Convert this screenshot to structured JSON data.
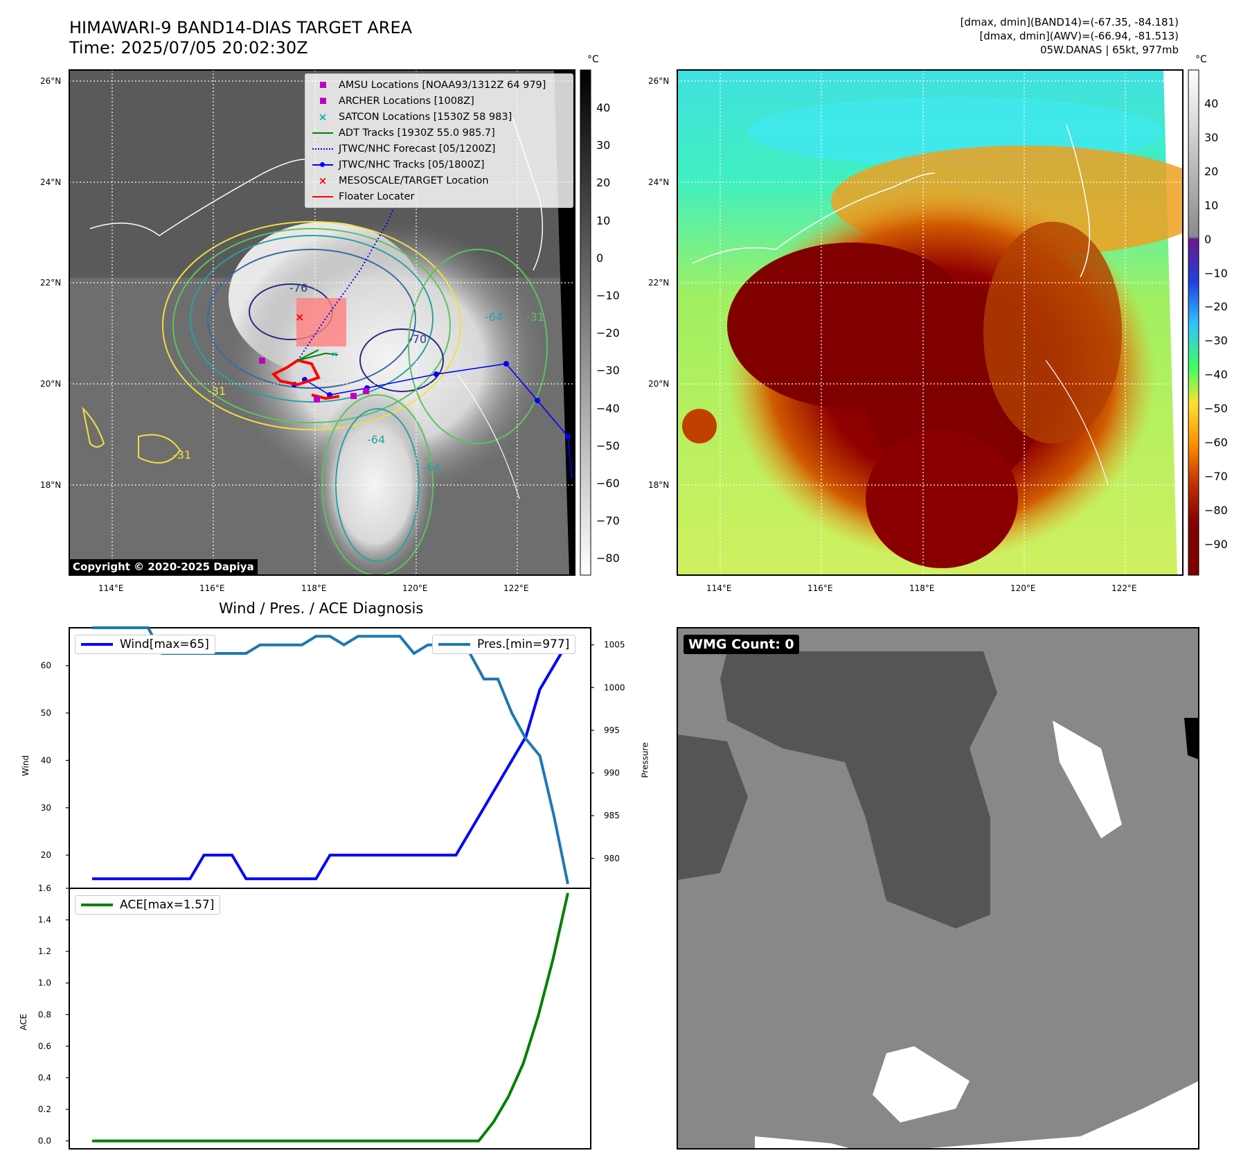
{
  "header": {
    "title_line1": "HIMAWARI-9 BAND14-DIAS TARGET AREA",
    "title_line2": "Time: 2025/07/05 20:02:30Z",
    "stats_line1": "[dmax, dmin](BAND14)=(-67.35, -84.181)",
    "stats_line2": "[dmax, dmin](AWV)=(-66.94, -81.513)",
    "stats_line3": "05W.DANAS | 65kt, 977mb"
  },
  "map": {
    "lat_labels": [
      "26°N",
      "24°N",
      "22°N",
      "20°N",
      "18°N"
    ],
    "lon_labels": [
      "114°E",
      "116°E",
      "118°E",
      "120°E",
      "122°E"
    ],
    "copyright": "Copyright © 2020-2025 Dapiya",
    "contour_labels": [
      "-76",
      "-64",
      "-31",
      "-70",
      "-64",
      "-31",
      "-64",
      "-31"
    ],
    "legend": [
      {
        "label": "AMSU Locations [NOAA93/1312Z 64 979]",
        "marker": "square",
        "color": "#c000c0"
      },
      {
        "label": "ARCHER Locations [1008Z]",
        "marker": "square",
        "color": "#c000c0"
      },
      {
        "label": "SATCON Locations [1530Z 58 983]",
        "marker": "x",
        "color": "#00b0b0"
      },
      {
        "label": "ADT Tracks [1930Z 55.0 985.7]",
        "marker": "line",
        "color": "#008000"
      },
      {
        "label": "JTWC/NHC Forecast [05/1200Z]",
        "marker": "dotted",
        "color": "#0000ff"
      },
      {
        "label": "JTWC/NHC Tracks [05/1800Z]",
        "marker": "line-dot",
        "color": "#0000ff"
      },
      {
        "label": "MESOSCALE/TARGET Location",
        "marker": "x",
        "color": "#ff0000"
      },
      {
        "label": "Floater Locater",
        "marker": "line",
        "color": "#ff0000"
      }
    ]
  },
  "colorbar_left": {
    "unit": "°C",
    "ticks": [
      "40",
      "30",
      "20",
      "10",
      "0",
      "−10",
      "−20",
      "−30",
      "−40",
      "−50",
      "−60",
      "−70",
      "−80"
    ]
  },
  "colorbar_right": {
    "unit": "°C",
    "ticks": [
      "40",
      "30",
      "20",
      "10",
      "0",
      "−10",
      "−20",
      "−30",
      "−40",
      "−50",
      "−60",
      "−70",
      "−80",
      "−90"
    ]
  },
  "diagnosis": {
    "title": "Wind / Pres. / ACE Diagnosis",
    "wind_legend": "Wind[max=65]",
    "pres_legend": "Pres.[min=977]",
    "ace_legend": "ACE[max=1.57]",
    "wind_ylabel": "Wind",
    "pres_ylabel": "Pressure",
    "ace_ylabel": "ACE"
  },
  "wmg": {
    "label": "WMG Count: 0"
  },
  "chart_data": [
    {
      "type": "line",
      "title": "Wind / Pres. / ACE Diagnosis",
      "ylabel": "Wind",
      "ylim": [
        13,
        68
      ],
      "yticks": [
        20,
        30,
        40,
        50,
        60
      ],
      "series": [
        {
          "name": "Wind[max=65]",
          "color": "#0000ff",
          "values": [
            15,
            15,
            15,
            15,
            15,
            15,
            15,
            15,
            20,
            20,
            20,
            15,
            15,
            15,
            15,
            15,
            15,
            20,
            20,
            20,
            20,
            20,
            20,
            20,
            20,
            20,
            20,
            25,
            30,
            35,
            40,
            45,
            55,
            60,
            65
          ]
        }
      ]
    },
    {
      "type": "line",
      "ylabel": "Pressure",
      "ylim": [
        976.5,
        1007
      ],
      "yticks": [
        980,
        985,
        990,
        995,
        1000,
        1005
      ],
      "series": [
        {
          "name": "Pres.[min=977]",
          "color": "#1f77b4",
          "values": [
            1007,
            1007,
            1007,
            1007,
            1007,
            1004,
            1004,
            1004,
            1004,
            1004,
            1004,
            1004,
            1005,
            1005,
            1005,
            1005,
            1006,
            1006,
            1005,
            1006,
            1006,
            1006,
            1006,
            1004,
            1005,
            1005,
            1005,
            1004,
            1001,
            1001,
            997,
            994,
            992,
            985,
            977
          ]
        }
      ]
    },
    {
      "type": "line",
      "ylabel": "ACE",
      "ylim": [
        -0.05,
        1.6
      ],
      "yticks": [
        0.0,
        0.2,
        0.4,
        0.6,
        0.8,
        1.0,
        1.2,
        1.4,
        1.6
      ],
      "series": [
        {
          "name": "ACE[max=1.57]",
          "color": "#008000",
          "values": [
            0,
            0,
            0,
            0,
            0,
            0,
            0,
            0,
            0,
            0,
            0,
            0,
            0,
            0,
            0,
            0,
            0,
            0,
            0,
            0,
            0,
            0,
            0,
            0,
            0,
            0,
            0,
            0.12,
            0.28,
            0.49,
            0.79,
            1.15,
            1.57
          ]
        }
      ]
    }
  ]
}
